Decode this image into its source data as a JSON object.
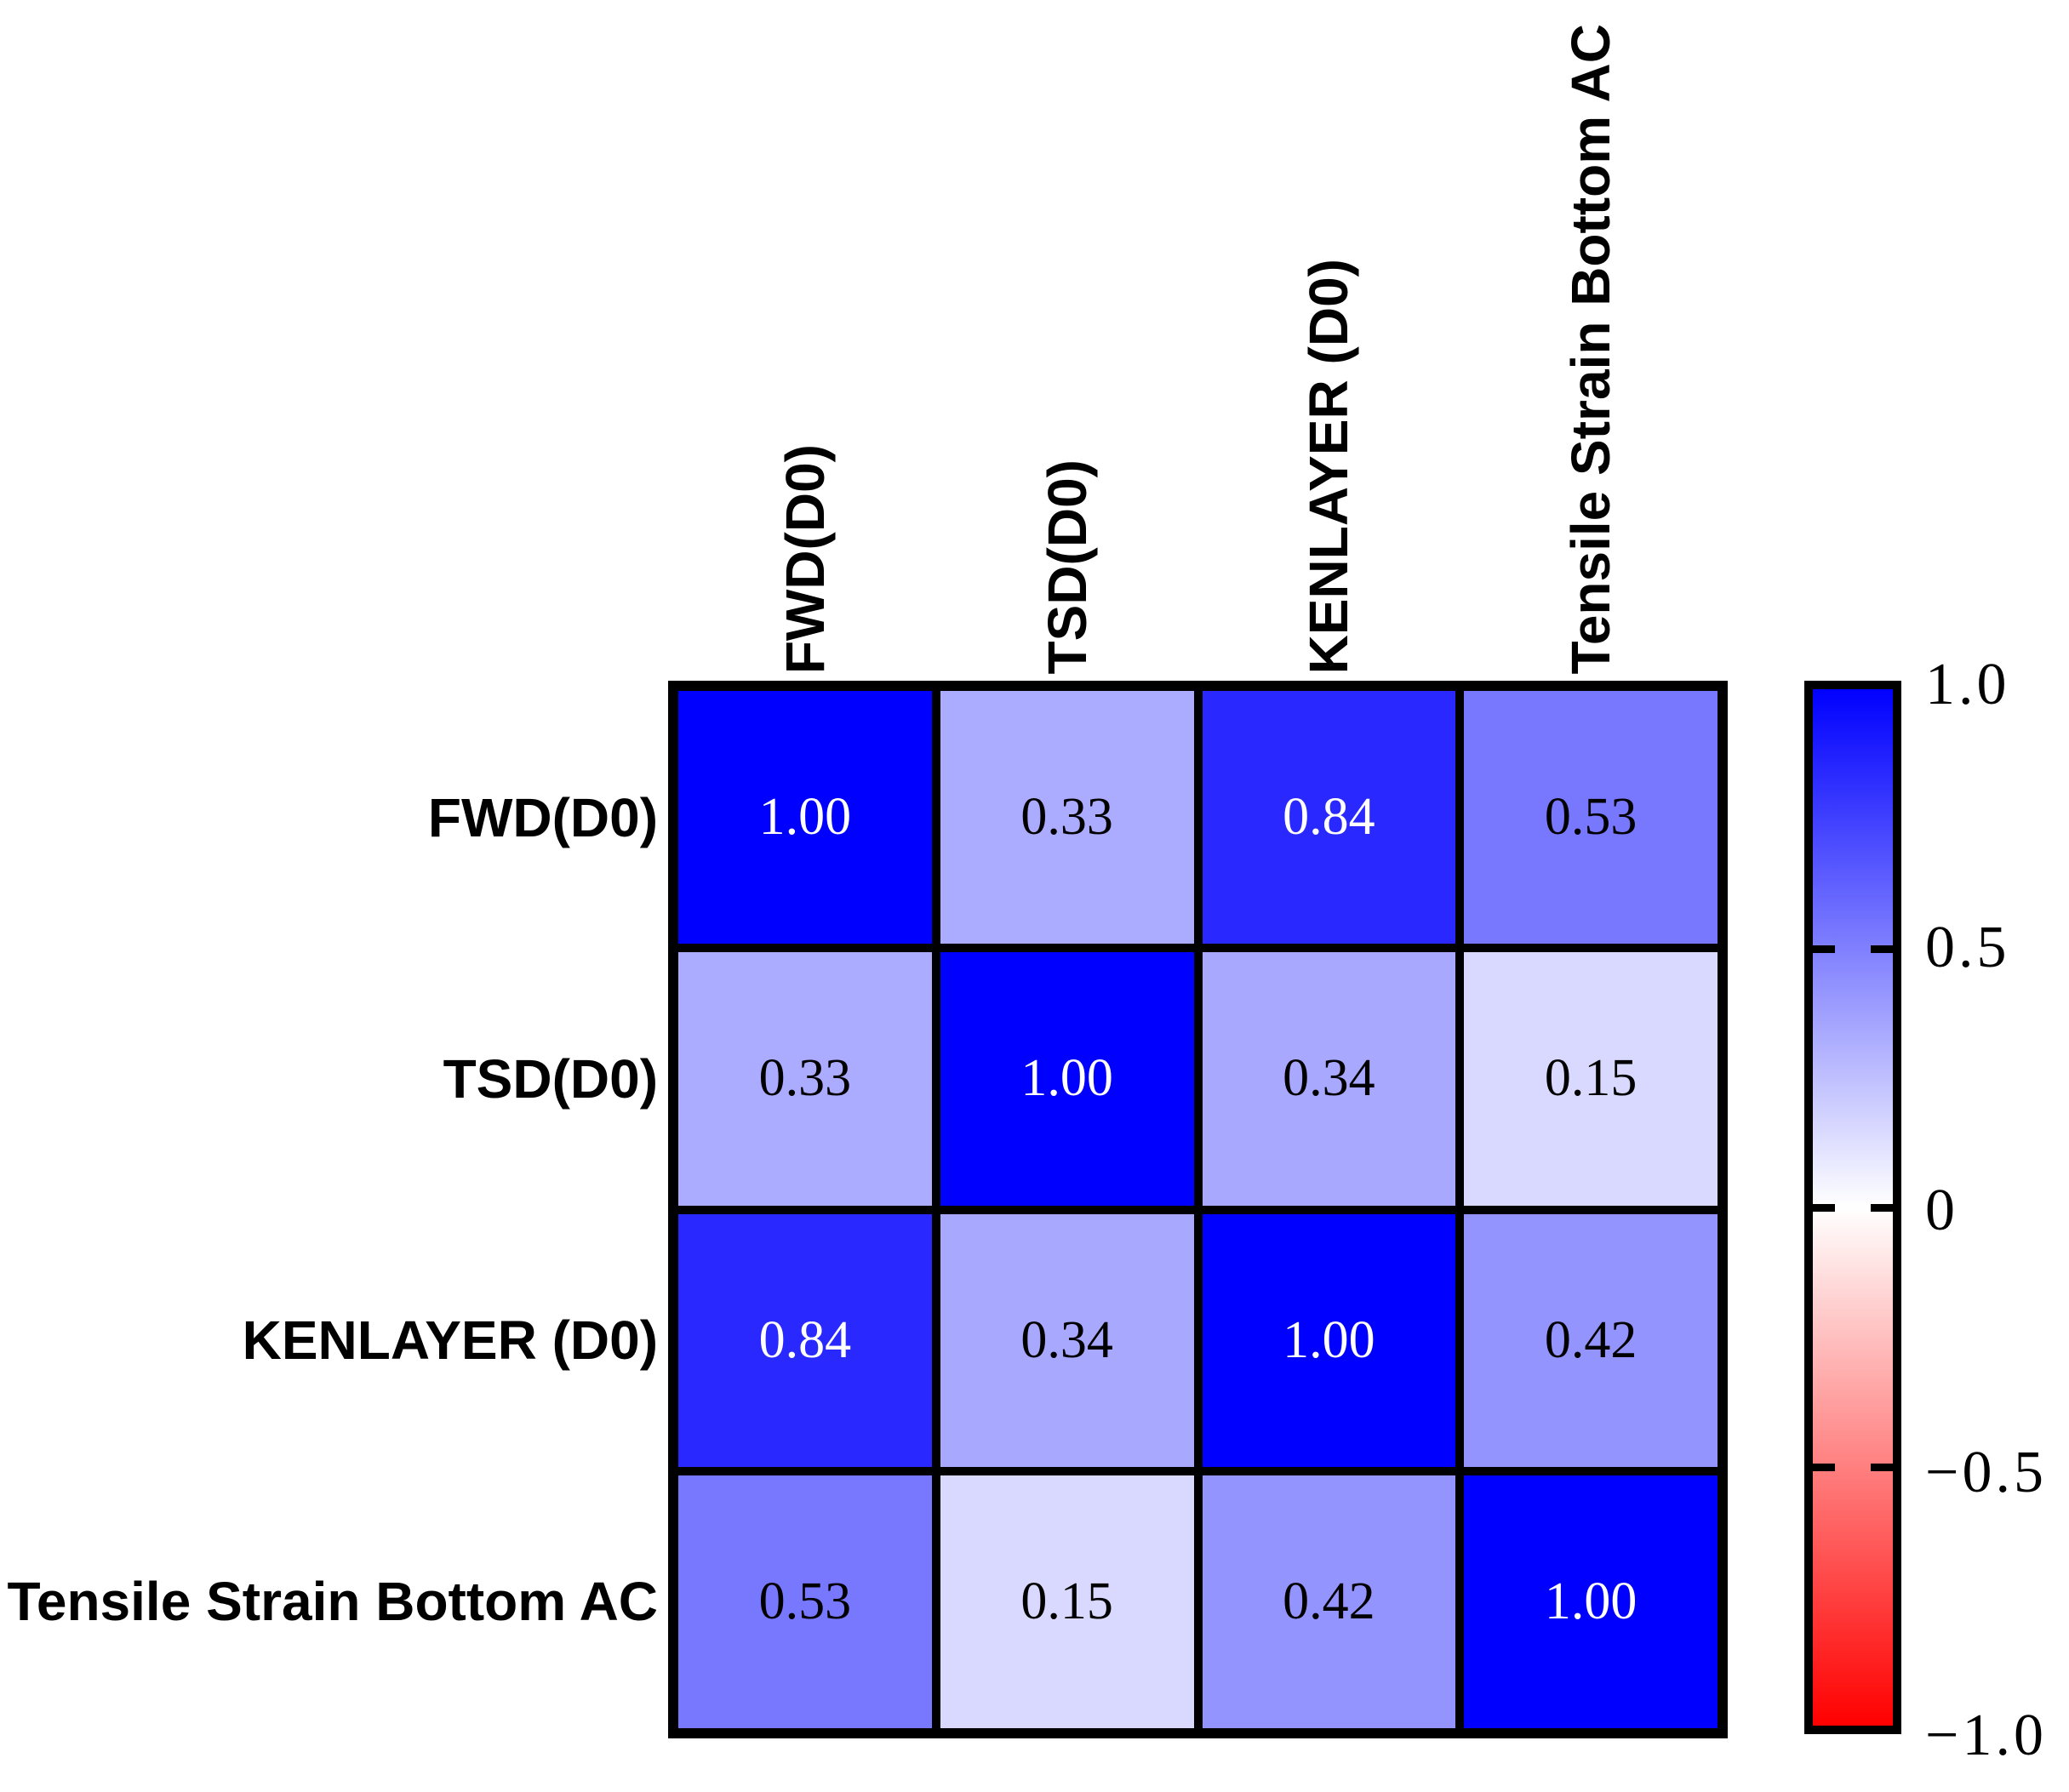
{
  "chart_data": {
    "type": "heatmap",
    "title": "",
    "categories": [
      "FWD(D0)",
      "TSD(D0)",
      "KENLAYER (D0)",
      "Tensile Strain Bottom AC"
    ],
    "matrix": [
      [
        1.0,
        0.33,
        0.84,
        0.53
      ],
      [
        0.33,
        1.0,
        0.34,
        0.15
      ],
      [
        0.84,
        0.34,
        1.0,
        0.42
      ],
      [
        0.53,
        0.15,
        0.42,
        1.0
      ]
    ],
    "cell_labels": [
      [
        "1.00",
        "0.33",
        "0.84",
        "0.53"
      ],
      [
        "0.33",
        "1.00",
        "0.34",
        "0.15"
      ],
      [
        "0.84",
        "0.34",
        "1.00",
        "0.42"
      ],
      [
        "0.53",
        "0.15",
        "0.42",
        "1.00"
      ]
    ],
    "vmin": -1.0,
    "vmax": 1.0,
    "colormap": "blue-white-red",
    "colors": {
      "positive_max": "#0000FF",
      "zero": "#FFFFFF",
      "negative_max": "#FF0000",
      "gridline": "#000000",
      "value_text_dark": "#000000",
      "value_text_light": "#FFFFFF"
    },
    "value_text_threshold": 0.7,
    "colorbar": {
      "ticks": [
        "1.0",
        "0.5",
        "0",
        "−0.5",
        "−1.0"
      ],
      "tick_values": [
        1.0,
        0.5,
        0.0,
        -0.5,
        -1.0
      ],
      "legend_position": "right"
    },
    "grid": true
  }
}
